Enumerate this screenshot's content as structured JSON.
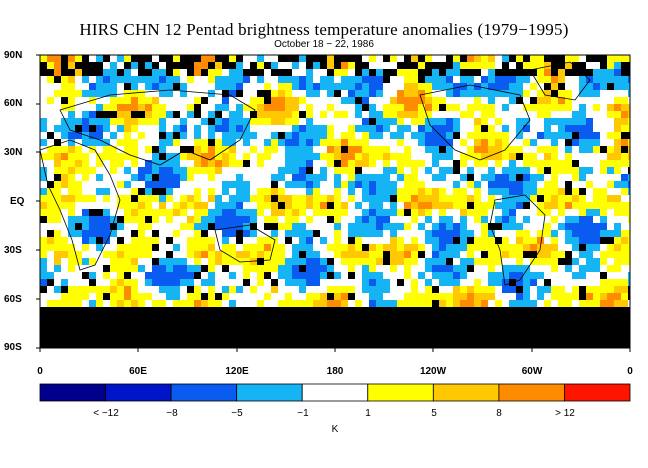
{
  "title": "HIRS CHN 12 Pentad brightness temperature anomalies (1979−1995)",
  "subtitle": "October 18 − 22, 1986",
  "lat_labels": [
    "90N",
    "60N",
    "30N",
    "EQ",
    "30S",
    "60S",
    "90S"
  ],
  "lon_labels": [
    "0",
    "60E",
    "120E",
    "180",
    "120W",
    "60W",
    "0"
  ],
  "colorbar": {
    "colors": [
      "#00008c",
      "#0014c8",
      "#0a5cf0",
      "#14b4f5",
      "#ffffff",
      "#ffff00",
      "#ffc800",
      "#ff8c00",
      "#ff1400"
    ],
    "labels": [
      "< −12",
      "−8",
      "−5",
      "−1",
      "1",
      "5",
      "8",
      "> 12"
    ],
    "unit": "K"
  },
  "legend_colors": {
    "missing": "#000000",
    "land_outline": "#000000"
  }
}
